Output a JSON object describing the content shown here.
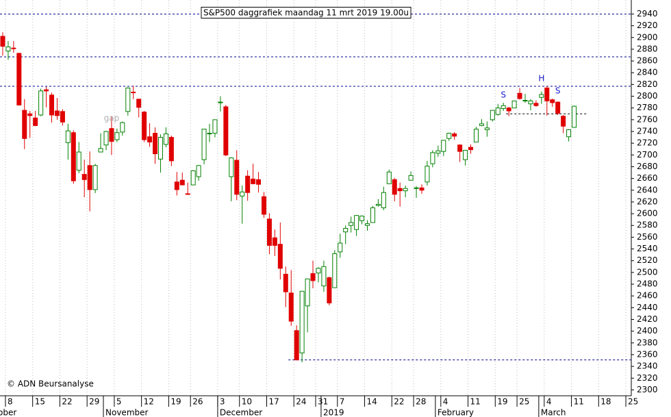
{
  "chart_data": {
    "type": "candlestick",
    "title": "S&P500 daggrafiek maandag 11 mrt 2019 19.00u",
    "credit": "© ADN Beursanalyse",
    "categories": [
      null,
      "8",
      null,
      null,
      null,
      null,
      "15",
      null,
      null,
      null,
      null,
      "22",
      null,
      null,
      null,
      null,
      "29",
      null,
      null,
      null,
      null,
      "5",
      null,
      null,
      null,
      null,
      "12",
      null,
      null,
      null,
      null,
      "19",
      null,
      null,
      null,
      "26",
      null,
      null,
      null,
      null,
      "3",
      null,
      null,
      null,
      "10",
      null,
      null,
      null,
      null,
      "17",
      null,
      null,
      null,
      null,
      "24",
      null,
      null,
      null,
      "31",
      null,
      null,
      null,
      "7",
      null,
      null,
      null,
      null,
      "14",
      null,
      null,
      null,
      null,
      "22",
      null,
      null,
      null,
      "28",
      null,
      null,
      null,
      null,
      "4",
      null,
      null,
      null,
      null,
      "11",
      null,
      null,
      null,
      null,
      "19",
      null,
      null,
      null,
      "25",
      null,
      null,
      null,
      null,
      "4",
      null,
      null,
      null,
      null,
      "11",
      null,
      null,
      null,
      null,
      "18",
      null,
      null,
      null,
      null,
      "25"
    ],
    "months": [
      {
        "label": "ober",
        "start": 0
      },
      {
        "label": "November",
        "start": 19
      },
      {
        "label": "December",
        "start": 40
      },
      {
        "label": "2019",
        "start": 59
      },
      {
        "label": "February",
        "start": 80
      },
      {
        "label": "March",
        "start": 99
      }
    ],
    "open": [
      2902,
      2877,
      2882,
      2873,
      2776,
      2770,
      2763,
      2768,
      2811,
      2802,
      2775,
      2774,
      2721,
      2738,
      2674,
      2667,
      2682,
      2641,
      2705,
      2717,
      2745,
      2726,
      2739,
      2774,
      2807,
      2795,
      2773,
      2731,
      2737,
      2693,
      2718,
      2730,
      2654,
      2657,
      2634,
      2649,
      2663,
      2692,
      2737,
      2737,
      2790,
      2782,
      2663,
      2691,
      2630,
      2664,
      2659,
      2658,
      2629,
      2591,
      2559,
      2548,
      2497,
      2465,
      2401,
      2363,
      2443,
      2498,
      2499,
      2477,
      2491,
      2474,
      2535,
      2569,
      2580,
      2573,
      2588,
      2580,
      2585,
      2614,
      2610,
      2651,
      2658,
      2643,
      2639,
      2657,
      2644,
      2644,
      2654,
      2685,
      2703,
      2706,
      2728,
      2736,
      2717,
      2692,
      2713,
      2722,
      2750,
      2743,
      2760,
      2769,
      2779,
      2780,
      2780,
      2805,
      2792,
      2787,
      2788,
      2798,
      2814,
      2794,
      2790,
      2766,
      2731,
      2747,
      null,
      null,
      null,
      null,
      null,
      null,
      null,
      null,
      null,
      null
    ],
    "high": [
      2909,
      2894,
      2894,
      2874,
      2795,
      2775,
      2775,
      2813,
      2816,
      2806,
      2797,
      2778,
      2753,
      2742,
      2722,
      2692,
      2706,
      2685,
      2737,
      2741,
      2766,
      2745,
      2757,
      2815,
      2818,
      2795,
      2775,
      2754,
      2747,
      2735,
      2747,
      2733,
      2671,
      2670,
      2653,
      2674,
      2683,
      2744,
      2753,
      2760,
      2800,
      2785,
      2696,
      2708,
      2648,
      2674,
      2685,
      2671,
      2637,
      2601,
      2573,
      2585,
      2510,
      2504,
      2410,
      2468,
      2489,
      2520,
      2509,
      2520,
      2493,
      2538,
      2566,
      2580,
      2595,
      2597,
      2597,
      2589,
      2613,
      2625,
      2646,
      2675,
      2661,
      2653,
      2648,
      2672,
      2647,
      2650,
      2690,
      2708,
      2716,
      2724,
      2738,
      2739,
      2718,
      2708,
      2718,
      2748,
      2761,
      2757,
      2776,
      2787,
      2789,
      2782,
      2792,
      2814,
      2804,
      2795,
      2793,
      2808,
      2817,
      2796,
      2791,
      2768,
      2744,
      2784,
      null,
      null,
      null,
      null,
      null,
      null,
      null,
      null,
      null,
      null
    ],
    "low": [
      2869,
      2862,
      2874,
      2784,
      2710,
      2729,
      2749,
      2766,
      2781,
      2755,
      2760,
      2750,
      2692,
      2651,
      2669,
      2628,
      2604,
      2635,
      2705,
      2708,
      2700,
      2722,
      2733,
      2767,
      2795,
      2764,
      2722,
      2714,
      2685,
      2670,
      2713,
      2681,
      2631,
      2649,
      2632,
      2649,
      2656,
      2684,
      2722,
      2730,
      2774,
      2698,
      2621,
      2623,
      2583,
      2622,
      2650,
      2636,
      2593,
      2531,
      2528,
      2488,
      2441,
      2409,
      2351,
      2347,
      2398,
      2473,
      2483,
      2467,
      2444,
      2474,
      2525,
      2548,
      2568,
      2562,
      2582,
      2571,
      2585,
      2612,
      2606,
      2651,
      2621,
      2612,
      2628,
      2657,
      2627,
      2634,
      2648,
      2679,
      2697,
      2698,
      2724,
      2726,
      2688,
      2682,
      2702,
      2722,
      2749,
      2731,
      2757,
      2767,
      2775,
      2766,
      2780,
      2794,
      2789,
      2776,
      2782,
      2787,
      2767,
      2782,
      2768,
      2737,
      2723,
      2747,
      null,
      null,
      null,
      null,
      null,
      null,
      null,
      null,
      null,
      null
    ],
    "close": [
      2885,
      2884,
      2881,
      2785,
      2728,
      2767,
      2750,
      2809,
      2809,
      2768,
      2767,
      2756,
      2741,
      2656,
      2705,
      2658,
      2641,
      2682,
      2711,
      2740,
      2723,
      2738,
      2755,
      2814,
      2806,
      2781,
      2726,
      2722,
      2702,
      2730,
      2736,
      2690,
      2641,
      2649,
      2633,
      2673,
      2682,
      2744,
      2737,
      2760,
      2790,
      2700,
      2695,
      2633,
      2637,
      2636,
      2651,
      2650,
      2599,
      2546,
      2546,
      2507,
      2467,
      2417,
      2351,
      2468,
      2489,
      2486,
      2507,
      2510,
      2448,
      2532,
      2550,
      2575,
      2585,
      2597,
      2596,
      2583,
      2610,
      2616,
      2636,
      2671,
      2633,
      2639,
      2643,
      2665,
      2644,
      2640,
      2681,
      2704,
      2707,
      2725,
      2737,
      2732,
      2706,
      2708,
      2709,
      2744,
      2753,
      2746,
      2776,
      2780,
      2784,
      2775,
      2792,
      2796,
      2793,
      2792,
      2784,
      2803,
      2792,
      2789,
      2771,
      2749,
      2743,
      2783,
      null,
      null,
      null,
      null,
      null,
      null,
      null,
      null,
      null,
      null
    ],
    "up_color": "#008000",
    "down_color": "#e00000",
    "ylim": [
      2290,
      2958
    ],
    "yticks": [
      2300,
      2320,
      2340,
      2360,
      2380,
      2400,
      2420,
      2440,
      2460,
      2480,
      2500,
      2520,
      2540,
      2560,
      2580,
      2600,
      2620,
      2640,
      2660,
      2680,
      2700,
      2720,
      2740,
      2760,
      2780,
      2800,
      2820,
      2840,
      2860,
      2880,
      2900,
      2920,
      2940
    ],
    "grid": true,
    "hlines": [
      {
        "value": 2940,
        "color": "#00008b"
      },
      {
        "value": 2867,
        "color": "#00008b"
      },
      {
        "value": 2817,
        "color": "#00008b"
      },
      {
        "value": 2351,
        "start": 53,
        "color": "#00008b"
      },
      {
        "value": 2770,
        "start": 93,
        "end": 108,
        "color": "#000000"
      }
    ],
    "annotations": [
      {
        "text": "gap",
        "at": 20,
        "y": 2762,
        "color": "#b0b0b0"
      },
      {
        "text": "S",
        "at": 92,
        "y": 2802,
        "color": "#1a1acc"
      },
      {
        "text": "H",
        "at": 99,
        "y": 2830,
        "color": "#1a1acc"
      },
      {
        "text": "S",
        "at": 102,
        "y": 2809,
        "color": "#1a1acc"
      }
    ]
  }
}
